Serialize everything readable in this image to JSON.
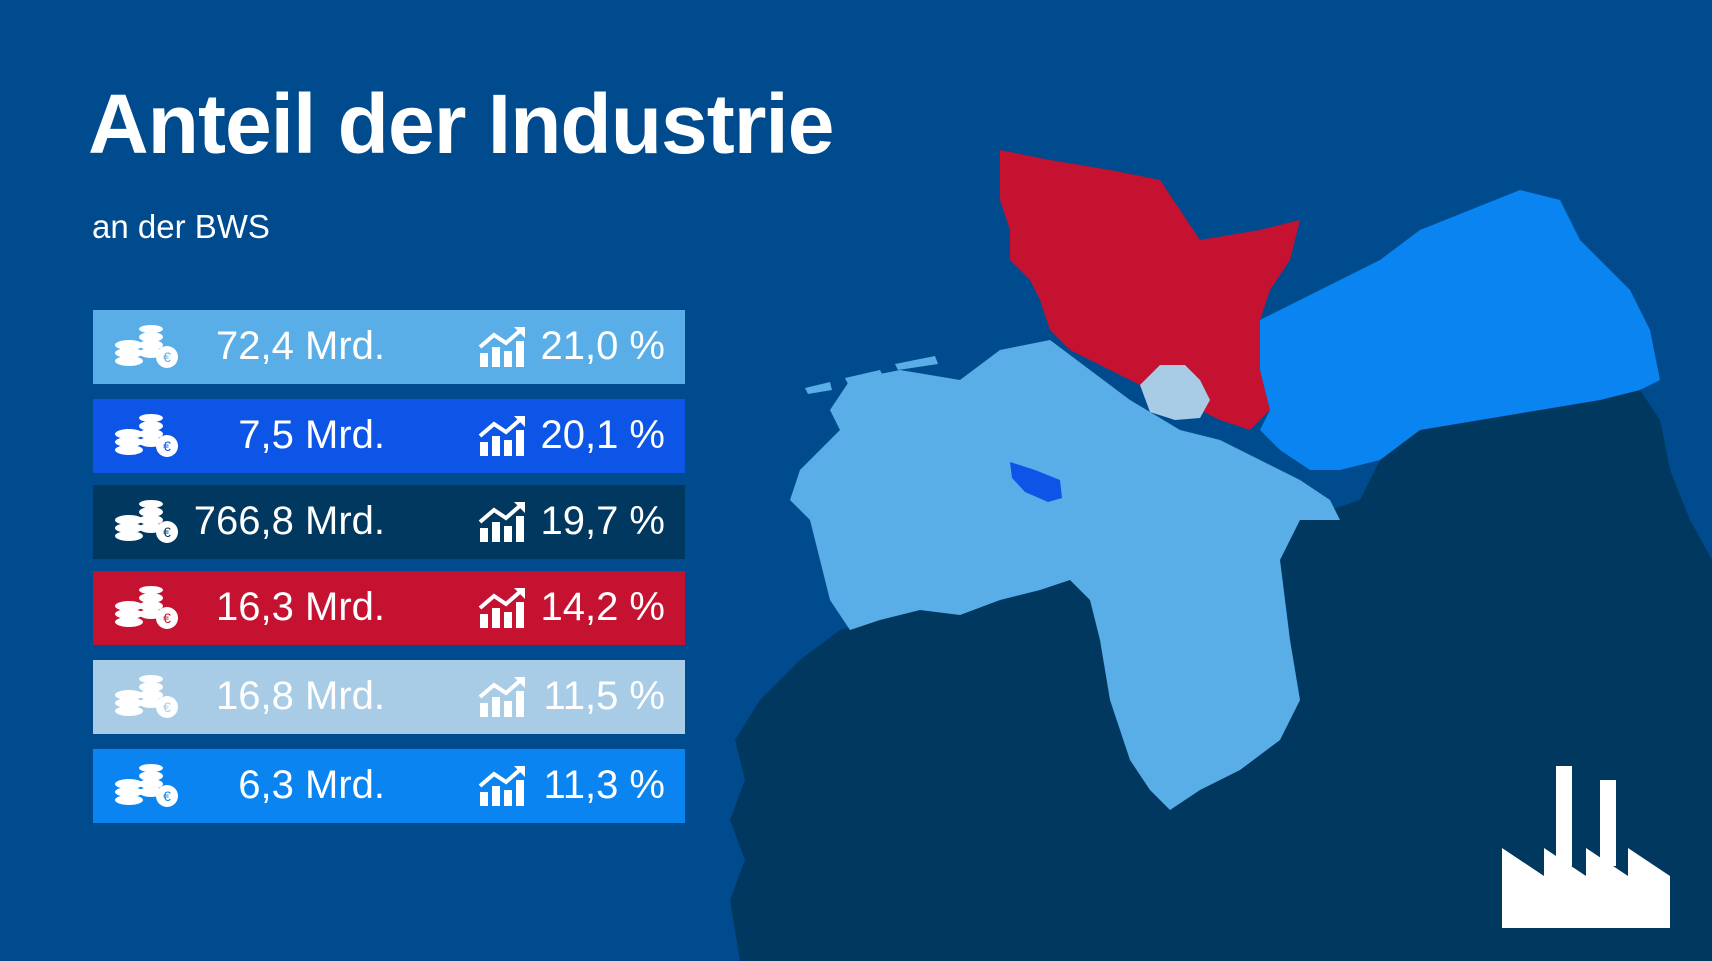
{
  "title": "Anteil der Industrie",
  "subtitle": "an der BWS",
  "icons": {
    "coins": "coins-euro-icon",
    "growth": "growth-chart-icon",
    "factory": "factory-icon"
  },
  "colors": {
    "background": "#004b8d",
    "land_dark": "#00385f",
    "light_blue": "#5aaee7",
    "mid_blue": "#0a84f0",
    "bright_blue": "#0d55e6",
    "red": "#c41230",
    "pale_blue": "#a8cce6"
  },
  "rows": [
    {
      "amount": "72,4 Mrd.",
      "share": "21,0 %",
      "color": "#5aaee7"
    },
    {
      "amount": "7,5 Mrd.",
      "share": "20,1 %",
      "color": "#0d55e6"
    },
    {
      "amount": "766,8 Mrd.",
      "share": "19,7 %",
      "color": "#00385f"
    },
    {
      "amount": "16,3 Mrd.",
      "share": "14,2 %",
      "color": "#c41230"
    },
    {
      "amount": "16,8 Mrd.",
      "share": "11,5 %",
      "color": "#a8cce6"
    },
    {
      "amount": "6,3 Mrd.",
      "share": "11,3 %",
      "color": "#0a84f0"
    }
  ]
}
